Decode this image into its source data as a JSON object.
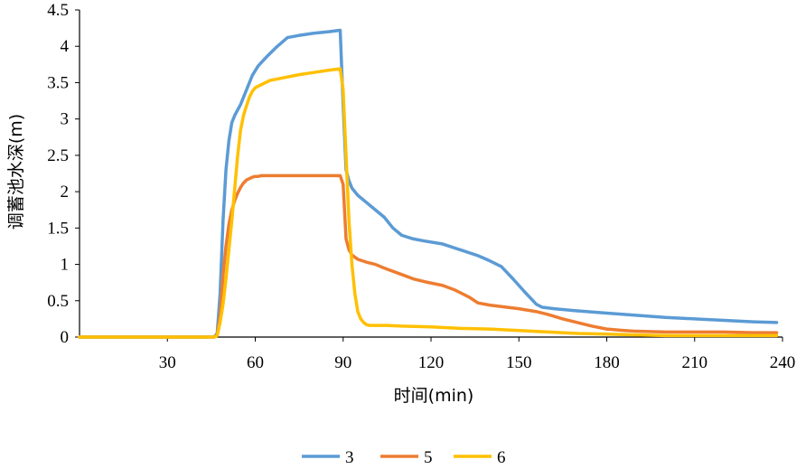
{
  "chart_data": {
    "type": "line",
    "title": "",
    "xlabel": "时间(min)",
    "ylabel": "调蓄池水深(m)",
    "xlim": [
      0,
      240
    ],
    "ylim": [
      0,
      4.5
    ],
    "xticks": [
      "30",
      "60",
      "90",
      "120",
      "150",
      "180",
      "210",
      "240"
    ],
    "yticks": [
      "0",
      "0.5",
      "1",
      "1.5",
      "2",
      "2.5",
      "3",
      "3.5",
      "4",
      "4.5"
    ],
    "grid": false,
    "legend_position": "bottom",
    "series": [
      {
        "name": "3",
        "color": "#5B9BD5",
        "x": [
          0,
          46,
          47,
          48,
          49,
          50,
          51,
          52,
          53,
          55,
          57,
          59,
          61,
          64,
          67,
          71,
          75,
          80,
          85,
          89,
          90,
          91,
          92,
          93,
          95,
          98,
          101,
          104,
          107,
          110,
          114,
          118,
          124,
          130,
          136,
          140,
          144,
          148,
          152,
          156,
          158,
          162,
          170,
          180,
          190,
          200,
          210,
          220,
          230,
          238
        ],
        "y": [
          0,
          0,
          0.05,
          0.6,
          1.6,
          2.3,
          2.7,
          2.95,
          3.05,
          3.2,
          3.4,
          3.6,
          3.73,
          3.86,
          3.98,
          4.12,
          4.15,
          4.18,
          4.2,
          4.22,
          3.2,
          2.3,
          2.15,
          2.05,
          1.95,
          1.85,
          1.75,
          1.65,
          1.5,
          1.4,
          1.35,
          1.32,
          1.28,
          1.2,
          1.12,
          1.05,
          0.97,
          0.8,
          0.62,
          0.45,
          0.41,
          0.39,
          0.36,
          0.33,
          0.3,
          0.27,
          0.25,
          0.23,
          0.21,
          0.2
        ]
      },
      {
        "name": "5",
        "color": "#ED7D31",
        "x": [
          0,
          46,
          47,
          48,
          49,
          50,
          51,
          52,
          53,
          54,
          55,
          56,
          57,
          59,
          60,
          61,
          62,
          65,
          70,
          75,
          80,
          85,
          89,
          90,
          91,
          92,
          93,
          95,
          98,
          101,
          104,
          110,
          114,
          118,
          124,
          128,
          133,
          136,
          140,
          144,
          150,
          156,
          160,
          165,
          170,
          175,
          180,
          186,
          190,
          200,
          210,
          220,
          230,
          238
        ],
        "y": [
          0,
          0,
          0.03,
          0.3,
          0.85,
          1.25,
          1.55,
          1.75,
          1.88,
          1.98,
          2.06,
          2.12,
          2.16,
          2.2,
          2.21,
          2.21,
          2.22,
          2.22,
          2.22,
          2.22,
          2.22,
          2.22,
          2.22,
          2.1,
          1.35,
          1.2,
          1.13,
          1.07,
          1.03,
          1.0,
          0.95,
          0.86,
          0.8,
          0.76,
          0.71,
          0.65,
          0.55,
          0.47,
          0.44,
          0.42,
          0.39,
          0.35,
          0.31,
          0.25,
          0.2,
          0.15,
          0.11,
          0.09,
          0.08,
          0.07,
          0.07,
          0.07,
          0.06,
          0.06
        ]
      },
      {
        "name": "6",
        "color": "#FFC000",
        "x": [
          0,
          46,
          47,
          48,
          49,
          50,
          51,
          52,
          53,
          54,
          55,
          56,
          57,
          58,
          59,
          60,
          61,
          62,
          65,
          70,
          75,
          80,
          85,
          89,
          90,
          91,
          92,
          93,
          94,
          95,
          96,
          97,
          98,
          99,
          100,
          105,
          110,
          120,
          130,
          140,
          150,
          160,
          170,
          180,
          190,
          200,
          210,
          220,
          230,
          238
        ],
        "y": [
          0,
          0,
          0.02,
          0.2,
          0.45,
          0.8,
          1.2,
          1.6,
          2.05,
          2.5,
          2.85,
          3.05,
          3.18,
          3.3,
          3.38,
          3.43,
          3.45,
          3.47,
          3.53,
          3.57,
          3.61,
          3.64,
          3.67,
          3.69,
          3.4,
          2.5,
          1.6,
          1.0,
          0.6,
          0.35,
          0.25,
          0.2,
          0.17,
          0.16,
          0.16,
          0.16,
          0.15,
          0.14,
          0.12,
          0.11,
          0.09,
          0.07,
          0.05,
          0.04,
          0.03,
          0.02,
          0.02,
          0.02,
          0.02,
          0.02
        ]
      }
    ]
  }
}
